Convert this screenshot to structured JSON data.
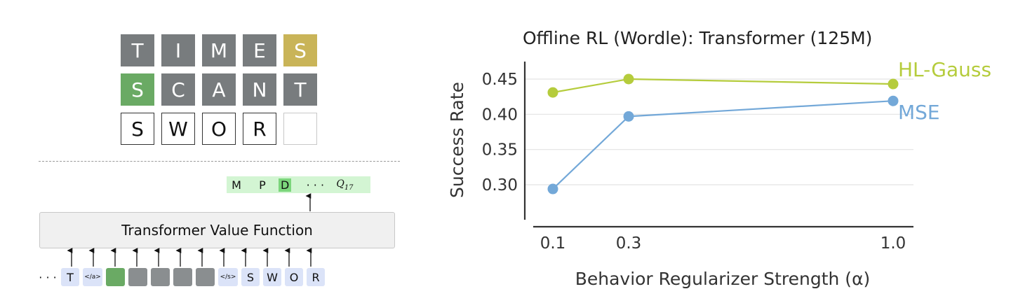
{
  "wordle": {
    "rows": [
      {
        "tiles": [
          {
            "letter": "T",
            "state": "gray"
          },
          {
            "letter": "I",
            "state": "gray"
          },
          {
            "letter": "M",
            "state": "gray"
          },
          {
            "letter": "E",
            "state": "gray"
          },
          {
            "letter": "S",
            "state": "yellow"
          }
        ]
      },
      {
        "tiles": [
          {
            "letter": "S",
            "state": "green"
          },
          {
            "letter": "C",
            "state": "gray"
          },
          {
            "letter": "A",
            "state": "gray"
          },
          {
            "letter": "N",
            "state": "gray"
          },
          {
            "letter": "T",
            "state": "gray"
          }
        ]
      },
      {
        "tiles": [
          {
            "letter": "S",
            "state": "empty"
          },
          {
            "letter": "W",
            "state": "empty"
          },
          {
            "letter": "O",
            "state": "empty"
          },
          {
            "letter": "R",
            "state": "empty"
          },
          {
            "letter": "",
            "state": "blank"
          }
        ]
      }
    ]
  },
  "qvalues": {
    "items": [
      "M",
      "P",
      "D",
      "· · ·",
      "Q"
    ],
    "subscript": "17"
  },
  "value_function": {
    "label": "Transformer Value Function"
  },
  "tokens": {
    "leading_dots": "· · ·",
    "items": [
      "T",
      "</a>",
      "",
      "",
      "",
      "",
      "",
      "</s>",
      "S",
      "W",
      "O",
      "R"
    ],
    "kinds": [
      "blue",
      "blue-small",
      "green",
      "gray",
      "gray",
      "gray",
      "gray",
      "blue-small",
      "blue",
      "blue",
      "blue",
      "blue"
    ]
  },
  "chart_data": {
    "type": "line",
    "title": "Offline RL (Wordle): Transformer (125M)",
    "xlabel": "Behavior Regularizer Strength (α)",
    "ylabel": "Success Rate",
    "x": [
      0.1,
      0.3,
      1.0
    ],
    "x_tick_labels": [
      "0.1",
      "0.3",
      "1.0"
    ],
    "y_ticks": [
      "0.30",
      "0.35",
      "0.40",
      "0.45"
    ],
    "ylim": [
      0.25,
      0.47
    ],
    "grid": "horizontal",
    "series": [
      {
        "name": "HL-Gauss",
        "values": [
          0.431,
          0.45,
          0.443
        ],
        "color": "#b5cc3c"
      },
      {
        "name": "MSE",
        "values": [
          0.294,
          0.397,
          0.419
        ],
        "color": "#73a8d8"
      }
    ],
    "legend": "inline-right"
  }
}
